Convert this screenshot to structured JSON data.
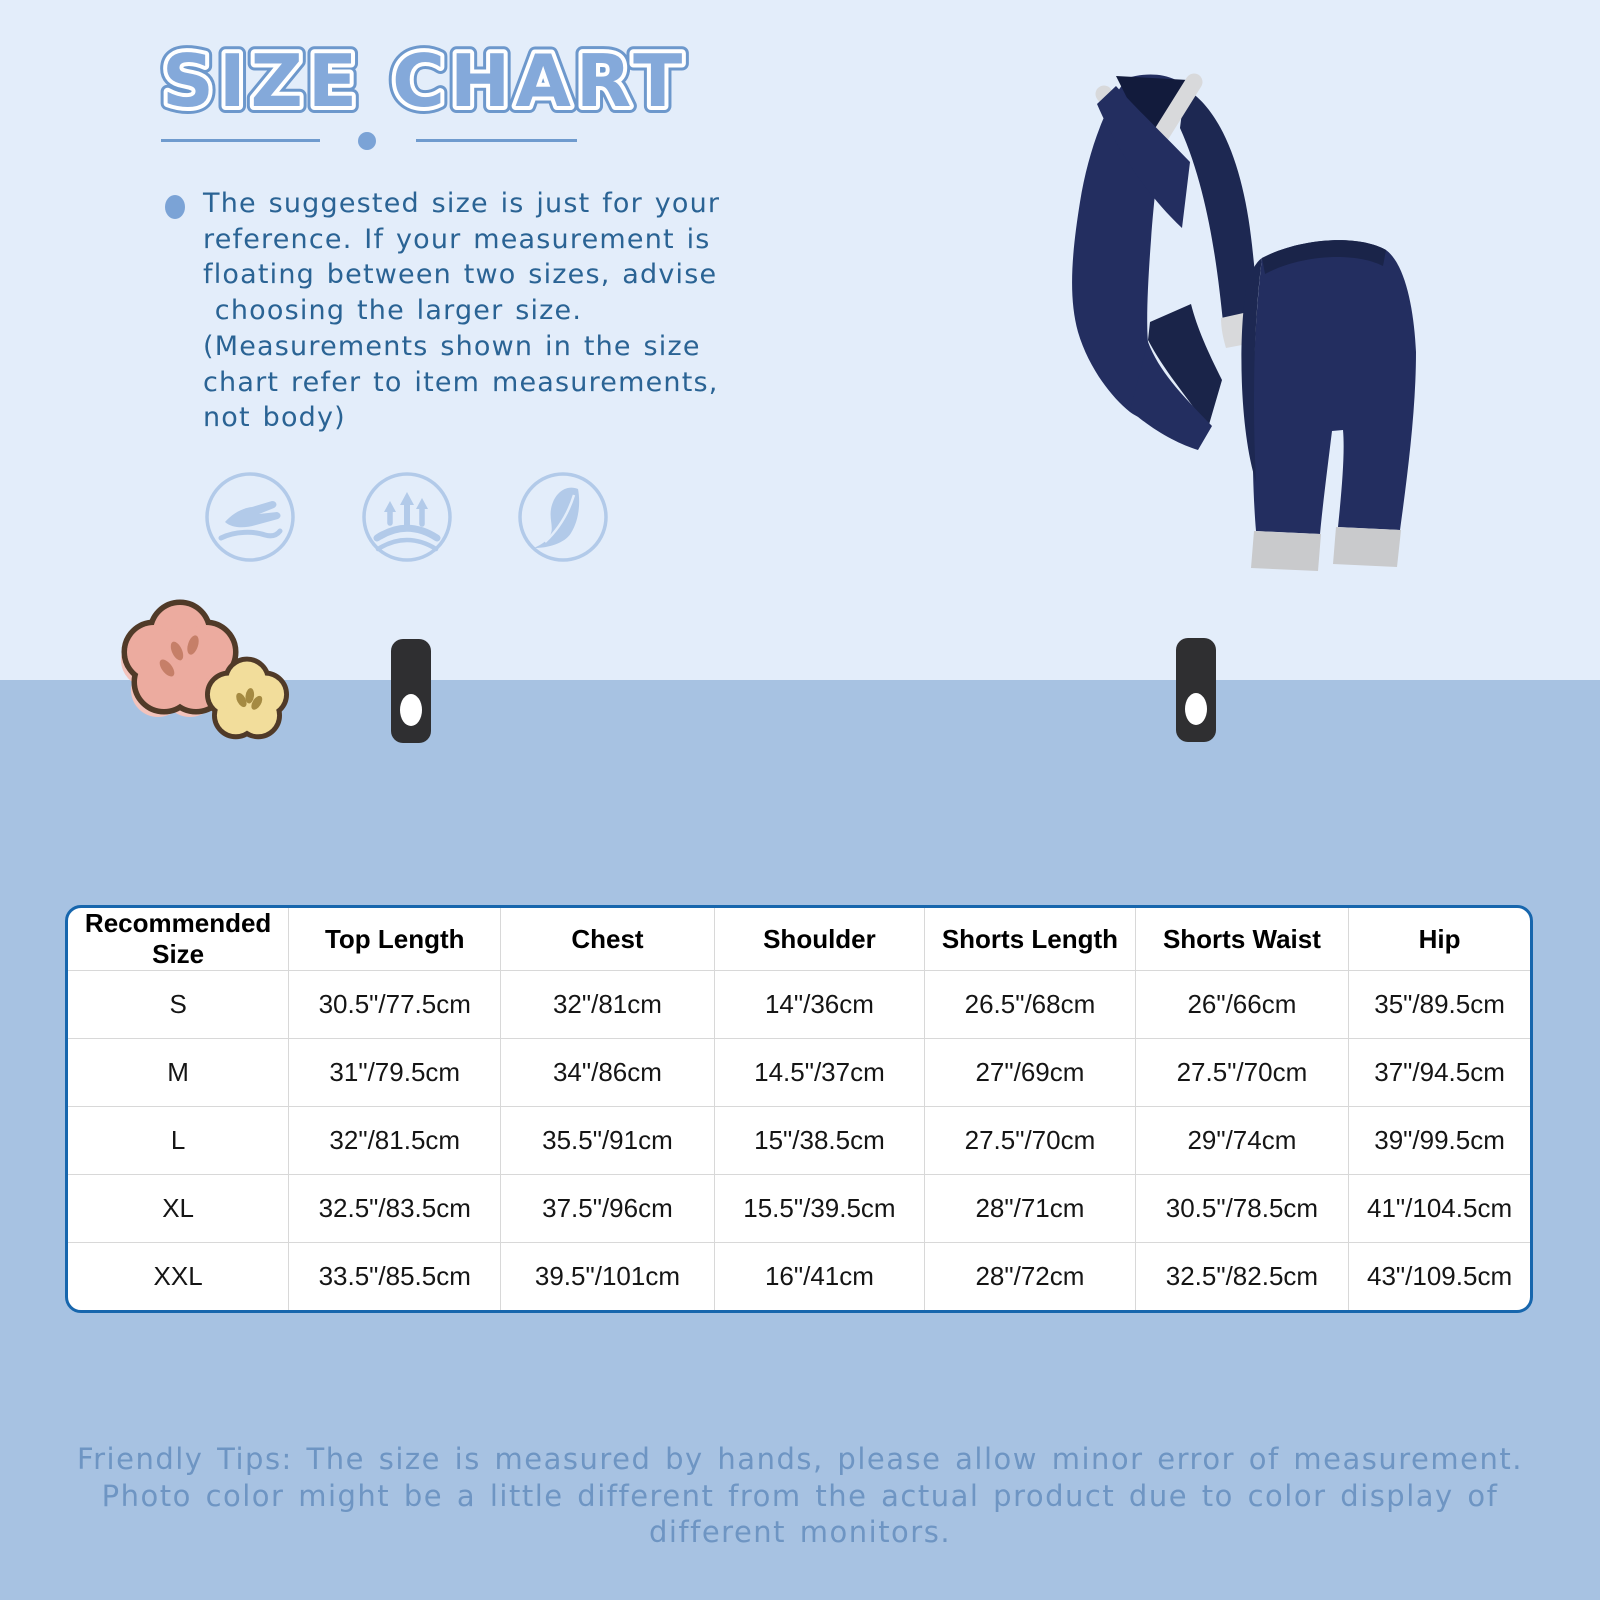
{
  "header": {
    "title": "SIZE CHART"
  },
  "intro": {
    "text": "The suggested size is just for your\nreference. If your measurement is\nfloating between two sizes, advise\n choosing the larger size.\n(Measurements shown in the size\nchart refer to item measurements,\nnot body)"
  },
  "features": {
    "icons": [
      "hand-feel-icon",
      "stretch-elastic-icon",
      "feather-light-icon"
    ]
  },
  "products": {
    "items": [
      "maternity-nursing-top",
      "maternity-capri-shorts"
    ]
  },
  "decorations": {
    "items": [
      "pink-flower",
      "yellow-flower",
      "hang-tab-left",
      "hang-tab-right"
    ]
  },
  "table": {
    "headers": [
      "Recommended Size",
      "Top Length",
      "Chest",
      "Shoulder",
      "Shorts Length",
      "Shorts Waist",
      "Hip"
    ],
    "rows": [
      {
        "size": "S",
        "values": [
          "30.5\"/77.5cm",
          "32\"/81cm",
          "14\"/36cm",
          "26.5\"/68cm",
          "26\"/66cm",
          "35\"/89.5cm"
        ]
      },
      {
        "size": "M",
        "values": [
          "31\"/79.5cm",
          "34\"/86cm",
          "14.5\"/37cm",
          "27\"/69cm",
          "27.5\"/70cm",
          "37\"/94.5cm"
        ]
      },
      {
        "size": "L",
        "values": [
          "32\"/81.5cm",
          "35.5\"/91cm",
          "15\"/38.5cm",
          "27.5\"/70cm",
          "29\"/74cm",
          "39\"/99.5cm"
        ]
      },
      {
        "size": "XL",
        "values": [
          "32.5\"/83.5cm",
          "37.5\"/96cm",
          "15.5\"/39.5cm",
          "28\"/71cm",
          "30.5\"/78.5cm",
          "41\"/104.5cm"
        ]
      },
      {
        "size": "XXL",
        "values": [
          "33.5\"/85.5cm",
          "39.5\"/101cm",
          "16\"/41cm",
          "28\"/72cm",
          "32.5\"/82.5cm",
          "43\"/109.5cm"
        ]
      }
    ]
  },
  "footer": {
    "tips": "Friendly Tips: The size is measured by hands, please allow minor error of measurement.\nPhoto color might be a little different from the actual product due to color display of\ndifferent monitors."
  },
  "colors": {
    "background_top": "#e3edfa",
    "background_bottom": "#a7c2e2",
    "title_fill": "#84a9da",
    "intro_text": "#2a6394",
    "table_border": "#1766ad",
    "tips_text": "#6e95c3",
    "garment_navy": "#232e60",
    "garment_trim": "#d8d9db"
  }
}
